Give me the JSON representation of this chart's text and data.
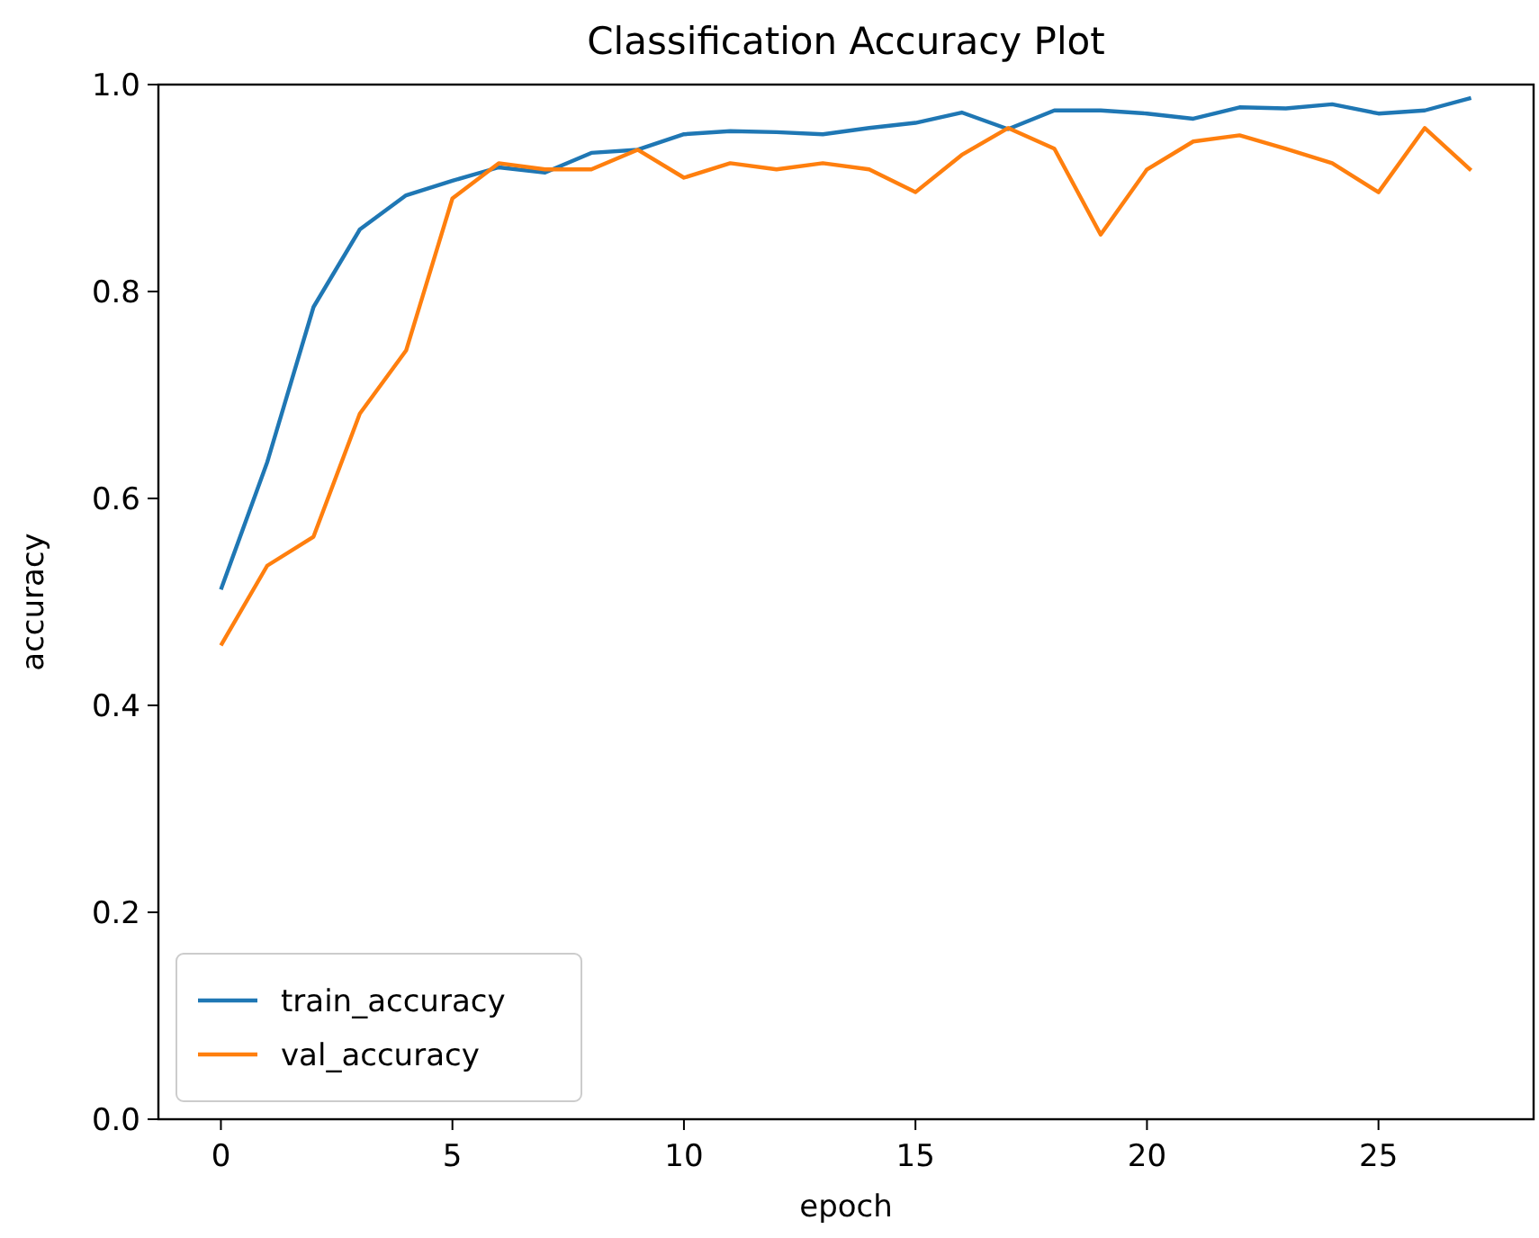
{
  "chart_data": {
    "type": "line",
    "title": "Classification Accuracy Plot",
    "xlabel": "epoch",
    "ylabel": "accuracy",
    "x": [
      0,
      1,
      2,
      3,
      4,
      5,
      6,
      7,
      8,
      9,
      10,
      11,
      12,
      13,
      14,
      15,
      16,
      17,
      18,
      19,
      20,
      21,
      22,
      23,
      24,
      25,
      26,
      27
    ],
    "series": [
      {
        "name": "train_accuracy",
        "color": "#1f77b4",
        "values": [
          0.512,
          0.635,
          0.785,
          0.86,
          0.893,
          0.907,
          0.92,
          0.915,
          0.934,
          0.937,
          0.952,
          0.955,
          0.954,
          0.952,
          0.958,
          0.963,
          0.973,
          0.957,
          0.975,
          0.975,
          0.972,
          0.967,
          0.978,
          0.977,
          0.981,
          0.972,
          0.975,
          0.987
        ]
      },
      {
        "name": "val_accuracy",
        "color": "#ff7f0e",
        "values": [
          0.458,
          0.535,
          0.563,
          0.682,
          0.743,
          0.89,
          0.924,
          0.918,
          0.918,
          0.937,
          0.91,
          0.924,
          0.918,
          0.924,
          0.918,
          0.896,
          0.932,
          0.958,
          0.938,
          0.855,
          0.918,
          0.945,
          0.951,
          0.938,
          0.924,
          0.896,
          0.958,
          0.917
        ]
      }
    ],
    "xlim": [
      -1.35,
      28.35
    ],
    "xticks": [
      0,
      5,
      10,
      15,
      20,
      25
    ],
    "ylim": [
      0,
      1
    ],
    "yticks": [
      {
        "value": 0,
        "label": "0.0"
      },
      {
        "value": 0.2,
        "label": "0.2"
      },
      {
        "value": 0.4,
        "label": "0.4"
      },
      {
        "value": 0.6,
        "label": "0.6"
      },
      {
        "value": 0.8,
        "label": "0.8"
      },
      {
        "value": 1,
        "label": "1.0"
      }
    ],
    "legend": "bottom left",
    "line_style": "solid",
    "marker": "none",
    "grid": false
  }
}
